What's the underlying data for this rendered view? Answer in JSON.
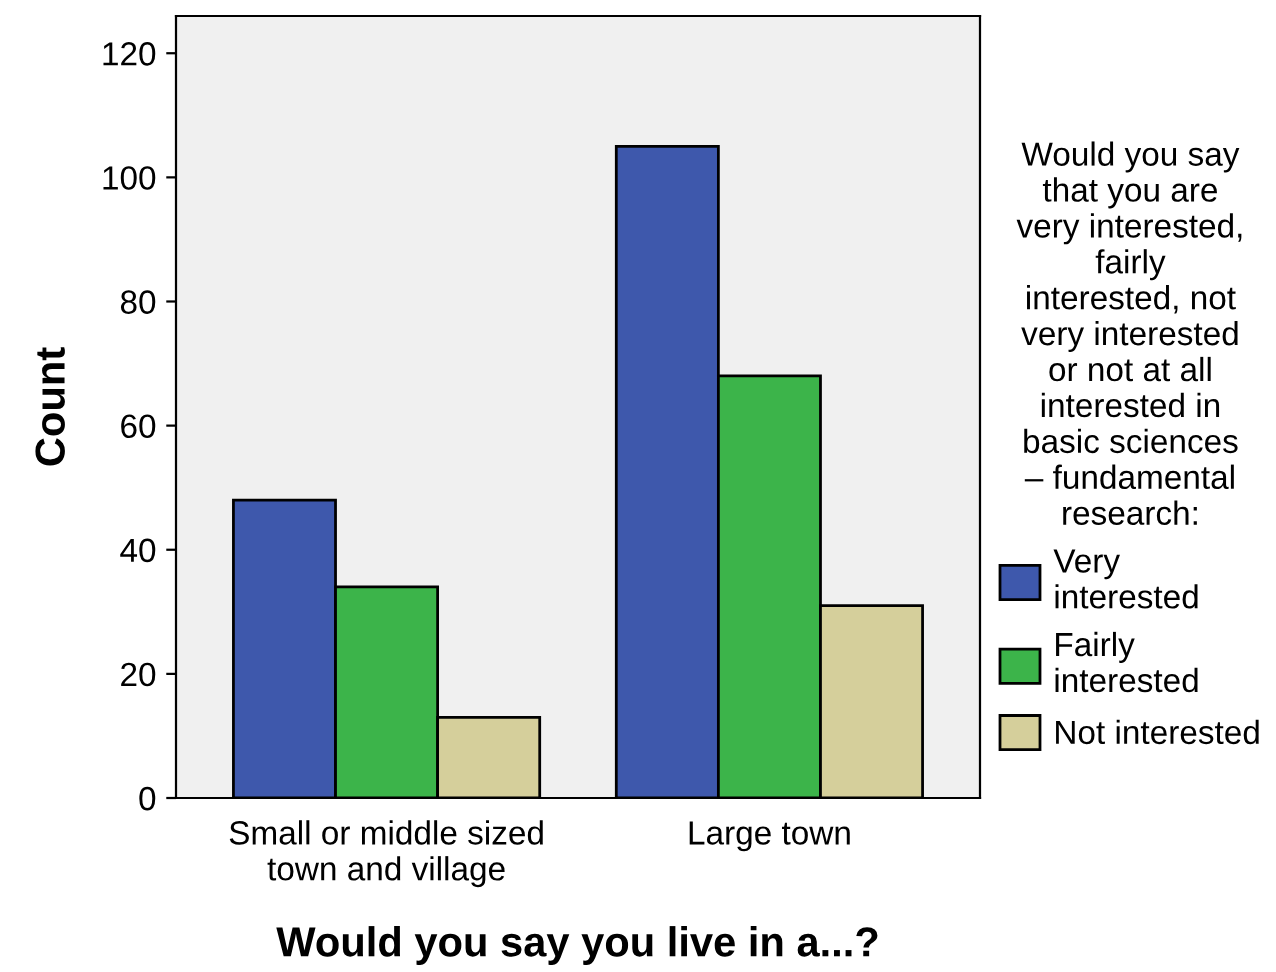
{
  "chart_data": {
    "type": "bar",
    "categories": [
      "Small or middle sized\ntown and village",
      "Large town"
    ],
    "series": [
      {
        "name": "Very\ninterested",
        "color": "#3e58ac",
        "values": [
          48,
          105
        ]
      },
      {
        "name": "Fairly\ninterested",
        "color": "#3cb44a",
        "values": [
          34,
          68
        ]
      },
      {
        "name": "Not interested",
        "color": "#d5cf9b",
        "values": [
          13,
          31
        ]
      }
    ],
    "xlabel": "Would you say you live in a...?",
    "ylabel": "Count",
    "legend_title": "Would you say\nthat you are\nvery interested,\nfairly\ninterested, not\nvery interested\nor not at all\ninterested in\nbasic sciences\n– fundamental\nresearch:",
    "legend": "right",
    "ylim": [
      0,
      126
    ],
    "yticks": [
      0,
      20,
      40,
      60,
      80,
      100,
      120
    ],
    "grid": false
  }
}
